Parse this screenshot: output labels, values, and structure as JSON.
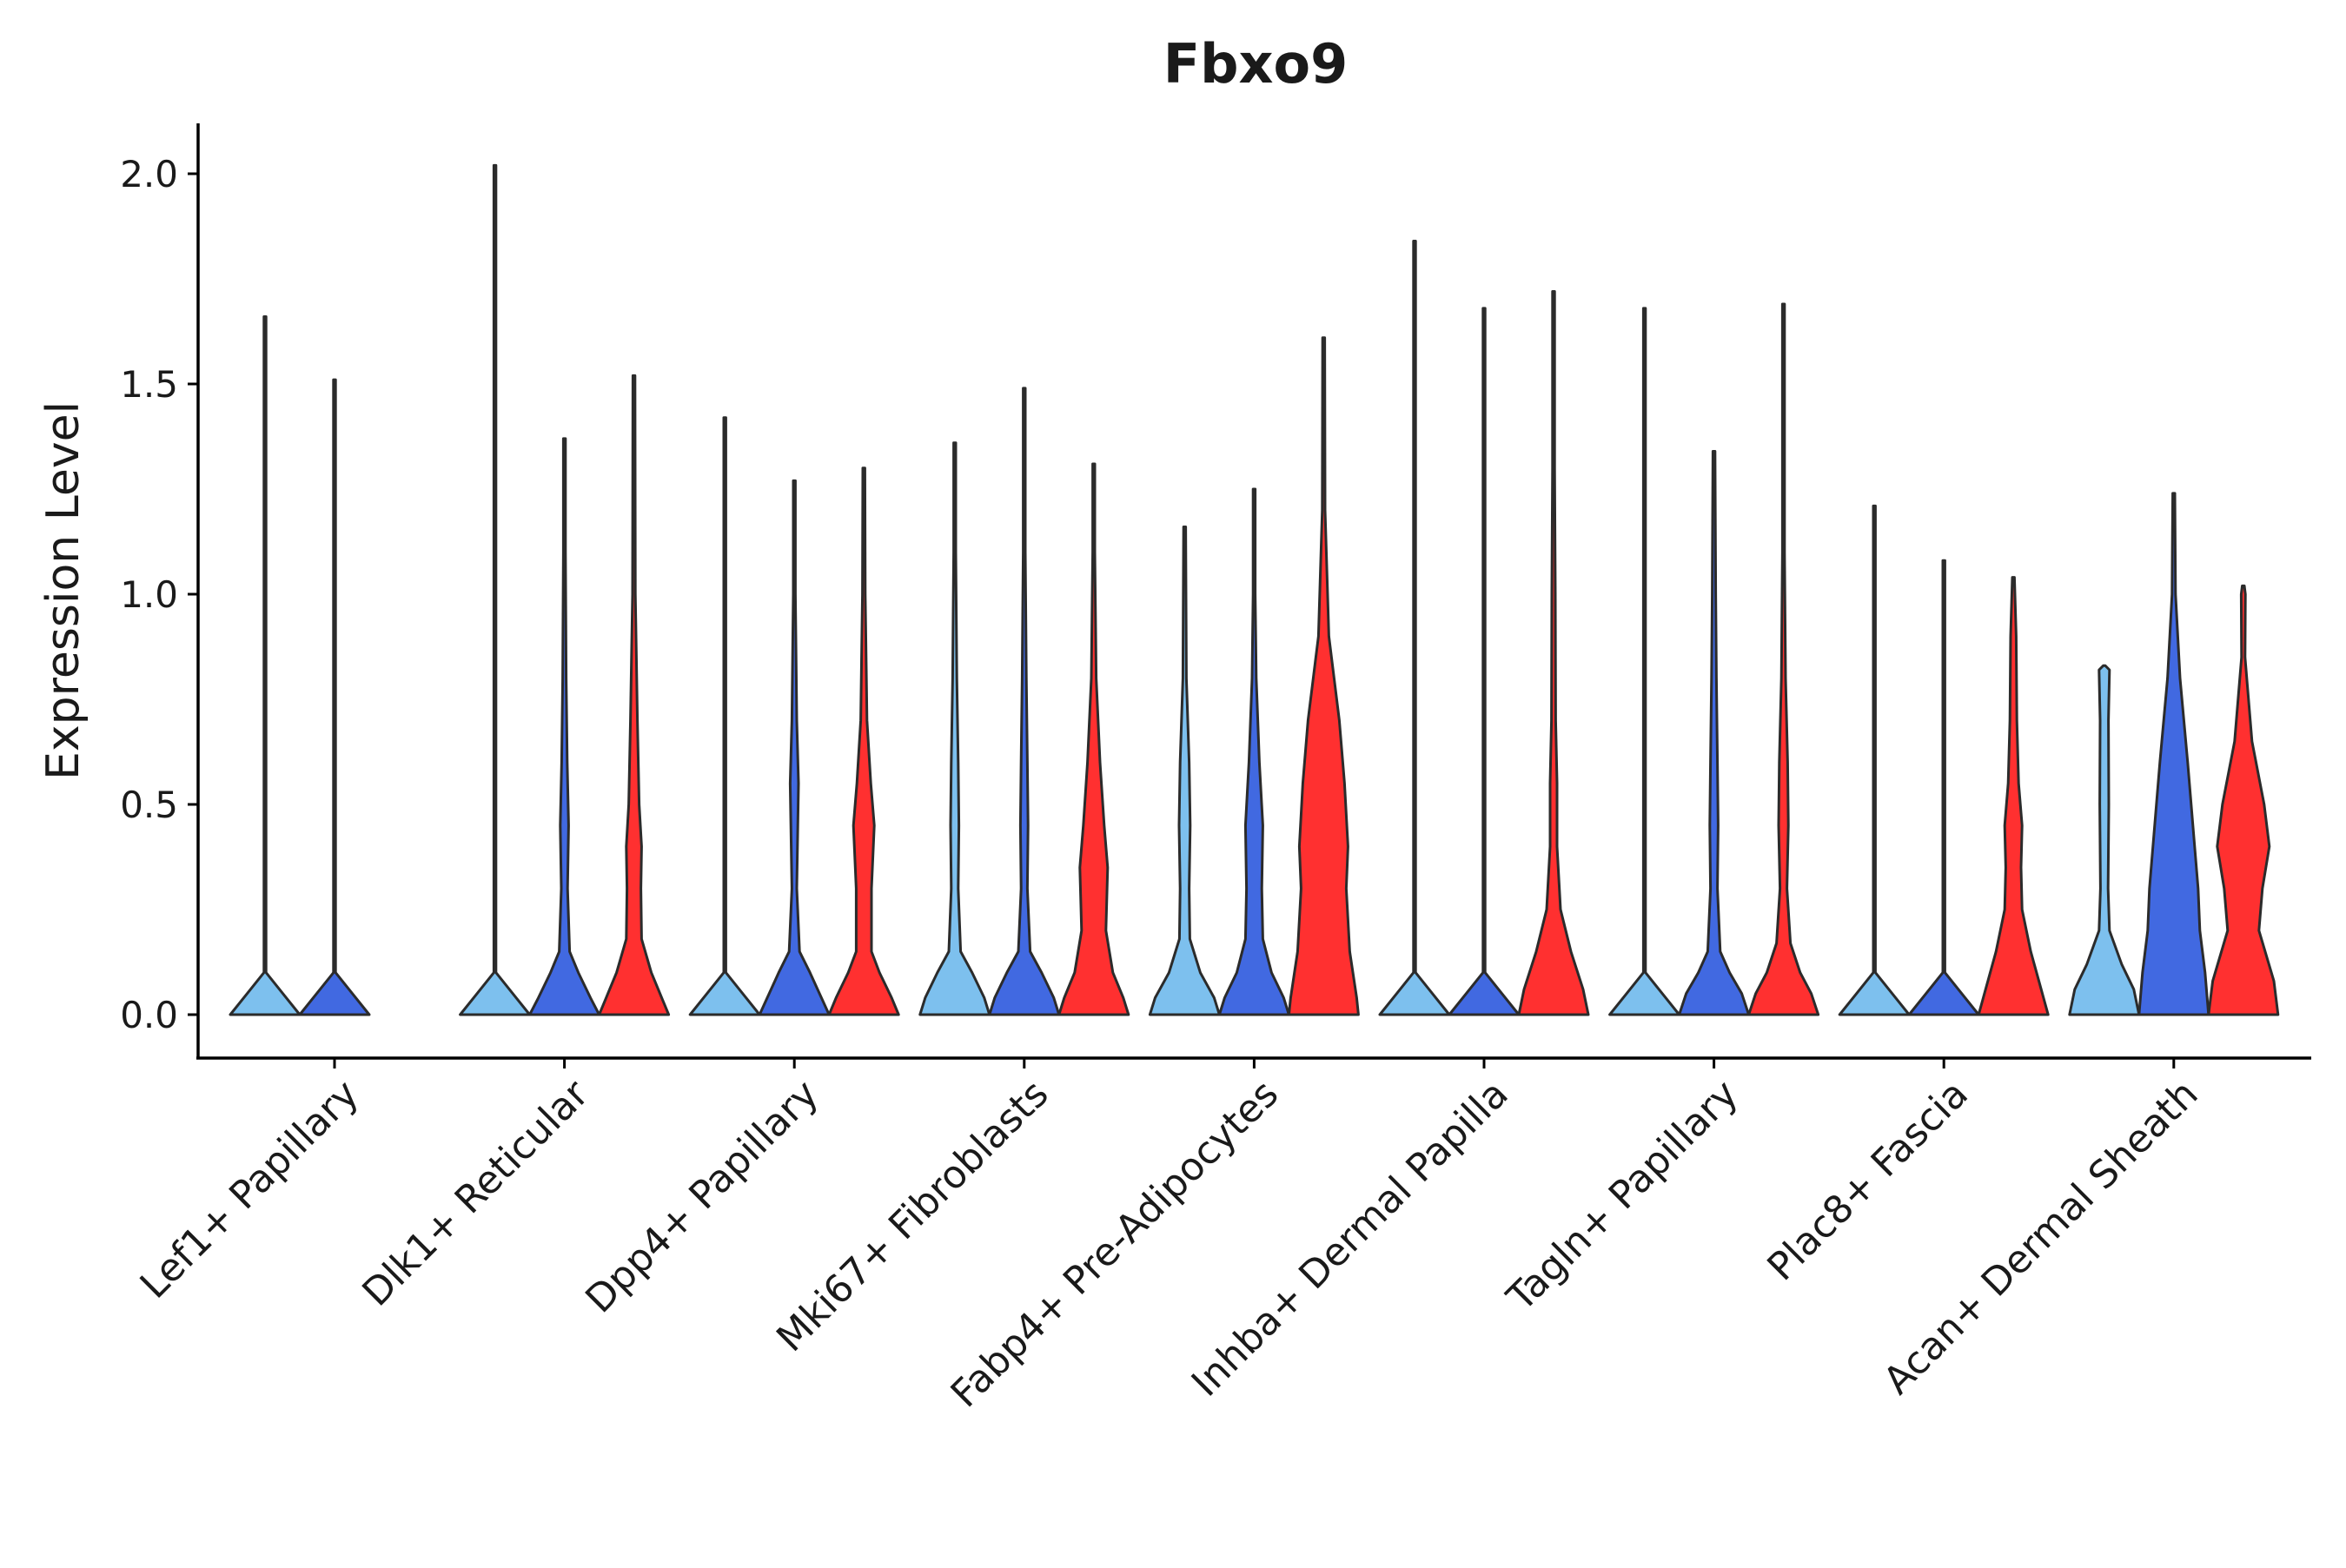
{
  "chart_data": {
    "type": "violin",
    "title": "Fbxo9",
    "xlabel": "",
    "ylabel": "Expression Level",
    "ylim": [
      -0.1,
      2.1
    ],
    "yticks": [
      "0.0",
      "0.5",
      "1.0",
      "1.5",
      "2.0"
    ],
    "legend": "none",
    "grid": false,
    "categories": [
      "Lef1+ Papillary",
      "Dlk1+ Reticular",
      "Dpp4+ Papillary",
      "Mki67+ Fibroblasts",
      "Fabp4+ Pre-Adipocytes",
      "Inhba+ Dermal Papilla",
      "Tagln+ Papillary",
      "Plac8+ Fascia",
      "Acan+ Dermal Sheath"
    ],
    "group_colors": [
      "#7dc0ee",
      "#4169e1",
      "#ff3030"
    ],
    "violins": [
      [
        {
          "max": 1.66,
          "density": [
            [
              0,
              1
            ],
            [
              0.1,
              0.01
            ],
            [
              1.66,
              0.005
            ]
          ]
        },
        {
          "max": 1.51,
          "density": [
            [
              0,
              1
            ],
            [
              0.1,
              0.01
            ],
            [
              1.51,
              0.005
            ]
          ]
        },
        null
      ],
      [
        {
          "max": 2.02,
          "density": [
            [
              0,
              1
            ],
            [
              0.1,
              0.01
            ],
            [
              2.02,
              0.005
            ]
          ]
        },
        {
          "max": 1.37,
          "density": [
            [
              0,
              1
            ],
            [
              0.04,
              0.75
            ],
            [
              0.1,
              0.4
            ],
            [
              0.15,
              0.15
            ],
            [
              0.3,
              0.09
            ],
            [
              0.45,
              0.12
            ],
            [
              0.6,
              0.08
            ],
            [
              0.8,
              0.05
            ],
            [
              1.1,
              0.03
            ],
            [
              1.37,
              0.005
            ]
          ]
        },
        {
          "max": 1.52,
          "density": [
            [
              0,
              1
            ],
            [
              0.04,
              0.8
            ],
            [
              0.1,
              0.5
            ],
            [
              0.18,
              0.22
            ],
            [
              0.3,
              0.2
            ],
            [
              0.4,
              0.22
            ],
            [
              0.5,
              0.15
            ],
            [
              0.7,
              0.1
            ],
            [
              1.0,
              0.04
            ],
            [
              1.52,
              0.005
            ]
          ]
        }
      ],
      [
        {
          "max": 1.42,
          "density": [
            [
              0,
              1
            ],
            [
              0.1,
              0.01
            ],
            [
              1.42,
              0.005
            ]
          ]
        },
        {
          "max": 1.27,
          "density": [
            [
              0,
              1
            ],
            [
              0.04,
              0.78
            ],
            [
              0.1,
              0.45
            ],
            [
              0.15,
              0.15
            ],
            [
              0.3,
              0.07
            ],
            [
              0.45,
              0.1
            ],
            [
              0.55,
              0.12
            ],
            [
              0.7,
              0.07
            ],
            [
              1.0,
              0.03
            ],
            [
              1.27,
              0.005
            ]
          ]
        },
        {
          "max": 1.3,
          "density": [
            [
              0,
              1
            ],
            [
              0.04,
              0.8
            ],
            [
              0.1,
              0.45
            ],
            [
              0.15,
              0.22
            ],
            [
              0.3,
              0.22
            ],
            [
              0.45,
              0.3
            ],
            [
              0.55,
              0.2
            ],
            [
              0.7,
              0.09
            ],
            [
              1.0,
              0.04
            ],
            [
              1.3,
              0.005
            ]
          ]
        }
      ],
      [
        {
          "max": 1.36,
          "density": [
            [
              0,
              1
            ],
            [
              0.04,
              0.85
            ],
            [
              0.1,
              0.5
            ],
            [
              0.15,
              0.17
            ],
            [
              0.3,
              0.1
            ],
            [
              0.45,
              0.12
            ],
            [
              0.6,
              0.1
            ],
            [
              0.8,
              0.06
            ],
            [
              1.1,
              0.03
            ],
            [
              1.36,
              0.005
            ]
          ]
        },
        {
          "max": 1.49,
          "density": [
            [
              0,
              1
            ],
            [
              0.04,
              0.85
            ],
            [
              0.1,
              0.5
            ],
            [
              0.15,
              0.17
            ],
            [
              0.3,
              0.09
            ],
            [
              0.45,
              0.11
            ],
            [
              0.6,
              0.09
            ],
            [
              0.8,
              0.06
            ],
            [
              1.1,
              0.03
            ],
            [
              1.49,
              0.005
            ]
          ]
        },
        {
          "max": 1.31,
          "density": [
            [
              0,
              1
            ],
            [
              0.04,
              0.85
            ],
            [
              0.1,
              0.55
            ],
            [
              0.2,
              0.35
            ],
            [
              0.35,
              0.4
            ],
            [
              0.45,
              0.3
            ],
            [
              0.6,
              0.18
            ],
            [
              0.8,
              0.07
            ],
            [
              1.1,
              0.03
            ],
            [
              1.31,
              0.005
            ]
          ]
        }
      ],
      [
        {
          "max": 1.16,
          "density": [
            [
              0,
              1
            ],
            [
              0.04,
              0.85
            ],
            [
              0.1,
              0.45
            ],
            [
              0.18,
              0.15
            ],
            [
              0.3,
              0.13
            ],
            [
              0.45,
              0.16
            ],
            [
              0.6,
              0.13
            ],
            [
              0.8,
              0.05
            ],
            [
              1.16,
              0.005
            ]
          ]
        },
        {
          "max": 1.25,
          "density": [
            [
              0,
              1
            ],
            [
              0.04,
              0.85
            ],
            [
              0.1,
              0.5
            ],
            [
              0.18,
              0.25
            ],
            [
              0.3,
              0.22
            ],
            [
              0.45,
              0.25
            ],
            [
              0.6,
              0.15
            ],
            [
              0.8,
              0.06
            ],
            [
              1.0,
              0.03
            ],
            [
              1.25,
              0.005
            ]
          ]
        },
        {
          "max": 1.61,
          "density": [
            [
              0,
              1
            ],
            [
              0.04,
              0.95
            ],
            [
              0.15,
              0.75
            ],
            [
              0.3,
              0.65
            ],
            [
              0.4,
              0.7
            ],
            [
              0.55,
              0.6
            ],
            [
              0.7,
              0.45
            ],
            [
              0.9,
              0.15
            ],
            [
              1.2,
              0.04
            ],
            [
              1.61,
              0.005
            ]
          ]
        }
      ],
      [
        {
          "max": 1.84,
          "density": [
            [
              0,
              1
            ],
            [
              0.1,
              0.01
            ],
            [
              1.84,
              0.005
            ]
          ]
        },
        {
          "max": 1.68,
          "density": [
            [
              0,
              1
            ],
            [
              0.1,
              0.01
            ],
            [
              1.68,
              0.005
            ]
          ]
        },
        {
          "max": 1.72,
          "density": [
            [
              0,
              1
            ],
            [
              0.06,
              0.85
            ],
            [
              0.15,
              0.5
            ],
            [
              0.25,
              0.2
            ],
            [
              0.4,
              0.1
            ],
            [
              0.55,
              0.1
            ],
            [
              0.7,
              0.06
            ],
            [
              1.0,
              0.05
            ],
            [
              1.3,
              0.03
            ],
            [
              1.72,
              0.005
            ]
          ]
        }
      ],
      [
        {
          "max": 1.68,
          "density": [
            [
              0,
              1
            ],
            [
              0.1,
              0.01
            ],
            [
              1.68,
              0.005
            ]
          ]
        },
        {
          "max": 1.34,
          "density": [
            [
              0,
              1
            ],
            [
              0.05,
              0.8
            ],
            [
              0.1,
              0.45
            ],
            [
              0.15,
              0.18
            ],
            [
              0.3,
              0.1
            ],
            [
              0.45,
              0.12
            ],
            [
              0.6,
              0.1
            ],
            [
              0.8,
              0.07
            ],
            [
              1.0,
              0.05
            ],
            [
              1.34,
              0.005
            ]
          ]
        },
        {
          "max": 1.69,
          "density": [
            [
              0,
              1
            ],
            [
              0.05,
              0.8
            ],
            [
              0.1,
              0.48
            ],
            [
              0.17,
              0.2
            ],
            [
              0.3,
              0.1
            ],
            [
              0.45,
              0.14
            ],
            [
              0.6,
              0.12
            ],
            [
              0.8,
              0.06
            ],
            [
              1.1,
              0.03
            ],
            [
              1.69,
              0.005
            ]
          ]
        }
      ],
      [
        {
          "max": 1.21,
          "density": [
            [
              0,
              1
            ],
            [
              0.1,
              0.01
            ],
            [
              1.21,
              0.005
            ]
          ]
        },
        {
          "max": 1.08,
          "density": [
            [
              0,
              1
            ],
            [
              0.1,
              0.01
            ],
            [
              1.08,
              0.005
            ]
          ]
        },
        {
          "max": 1.04,
          "density": [
            [
              0,
              1
            ],
            [
              0.06,
              0.8
            ],
            [
              0.15,
              0.5
            ],
            [
              0.25,
              0.25
            ],
            [
              0.35,
              0.22
            ],
            [
              0.45,
              0.25
            ],
            [
              0.55,
              0.15
            ],
            [
              0.7,
              0.1
            ],
            [
              0.9,
              0.08
            ],
            [
              1.04,
              0.005
            ]
          ]
        }
      ],
      [
        {
          "max": 0.83,
          "density": [
            [
              0,
              1
            ],
            [
              0.06,
              0.85
            ],
            [
              0.12,
              0.5
            ],
            [
              0.2,
              0.15
            ],
            [
              0.3,
              0.11
            ],
            [
              0.5,
              0.13
            ],
            [
              0.7,
              0.12
            ],
            [
              0.82,
              0.15
            ],
            [
              0.83,
              0.005
            ]
          ]
        },
        {
          "max": 1.24,
          "density": [
            [
              0,
              1
            ],
            [
              0.1,
              0.9
            ],
            [
              0.2,
              0.75
            ],
            [
              0.3,
              0.7
            ],
            [
              0.45,
              0.55
            ],
            [
              0.6,
              0.4
            ],
            [
              0.8,
              0.18
            ],
            [
              1.0,
              0.05
            ],
            [
              1.24,
              0.005
            ]
          ]
        },
        {
          "max": 1.02,
          "density": [
            [
              0,
              1
            ],
            [
              0.08,
              0.88
            ],
            [
              0.2,
              0.45
            ],
            [
              0.3,
              0.55
            ],
            [
              0.4,
              0.75
            ],
            [
              0.5,
              0.6
            ],
            [
              0.65,
              0.25
            ],
            [
              0.85,
              0.05
            ],
            [
              1.0,
              0.06
            ],
            [
              1.02,
              0.005
            ]
          ]
        }
      ]
    ]
  }
}
